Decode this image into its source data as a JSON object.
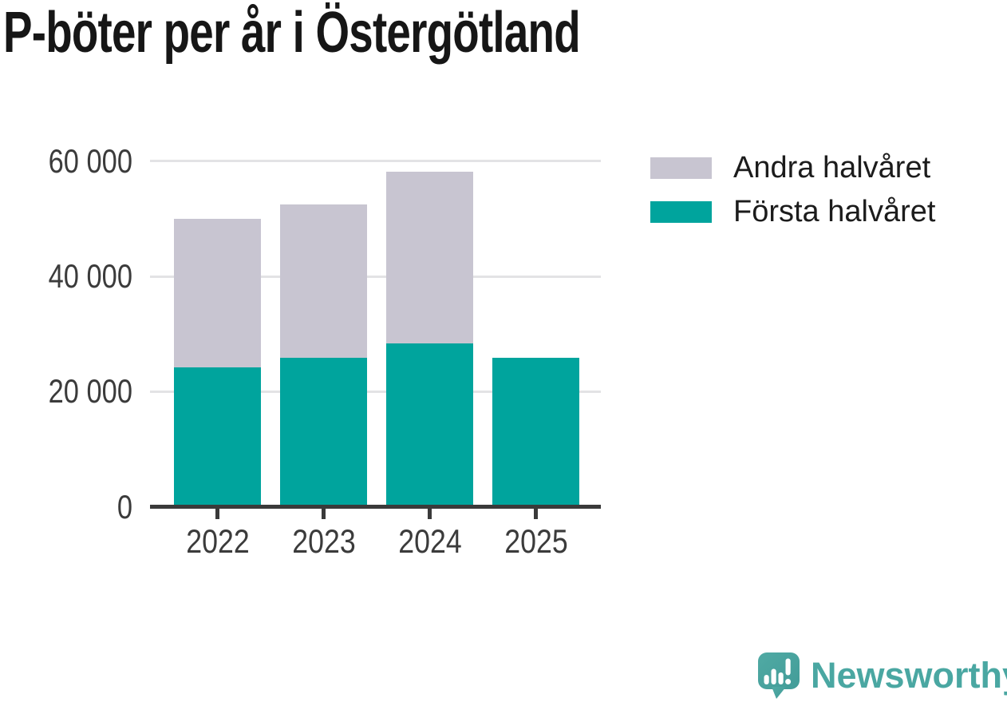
{
  "title": "P-böter per år i Östergötland",
  "legend": {
    "items": [
      {
        "label": "Andra halvåret",
        "color": "#c8c5d1"
      },
      {
        "label": "Första halvåret",
        "color": "#00a49d"
      }
    ]
  },
  "chart_data": {
    "type": "bar",
    "stacked": true,
    "title": "P-böter per år i Östergötland",
    "categories": [
      "2022",
      "2023",
      "2024",
      "2025"
    ],
    "series": [
      {
        "name": "Första halvåret",
        "color": "#00a49d",
        "values": [
          24200,
          25800,
          28300,
          25800
        ]
      },
      {
        "name": "Andra halvåret",
        "color": "#c8c5d1",
        "values": [
          25800,
          26700,
          29900,
          0
        ]
      }
    ],
    "totals": [
      50000,
      52500,
      58200,
      25800
    ],
    "yticks": [
      0,
      20000,
      40000,
      60000
    ],
    "ytick_labels": [
      "0",
      "20 000",
      "40 000",
      "60 000"
    ],
    "ylim": [
      0,
      62000
    ],
    "xlabel": "",
    "ylabel": "",
    "grid": "horizontal-light",
    "legend_position": "right-top"
  },
  "branding": {
    "logo_text": "Newsworthy",
    "logo_icon": "speech-bubble-bar-chart-exclamation-icon",
    "logo_color": "#4aa7a2"
  },
  "colors": {
    "background": "#ffffff",
    "first_half": "#00a49d",
    "second_half": "#c8c5d1",
    "axis": "#3a3a3a",
    "gridline": "#e3e3e5",
    "title_text": "#161616",
    "tick_label": "#3b3b3b"
  }
}
